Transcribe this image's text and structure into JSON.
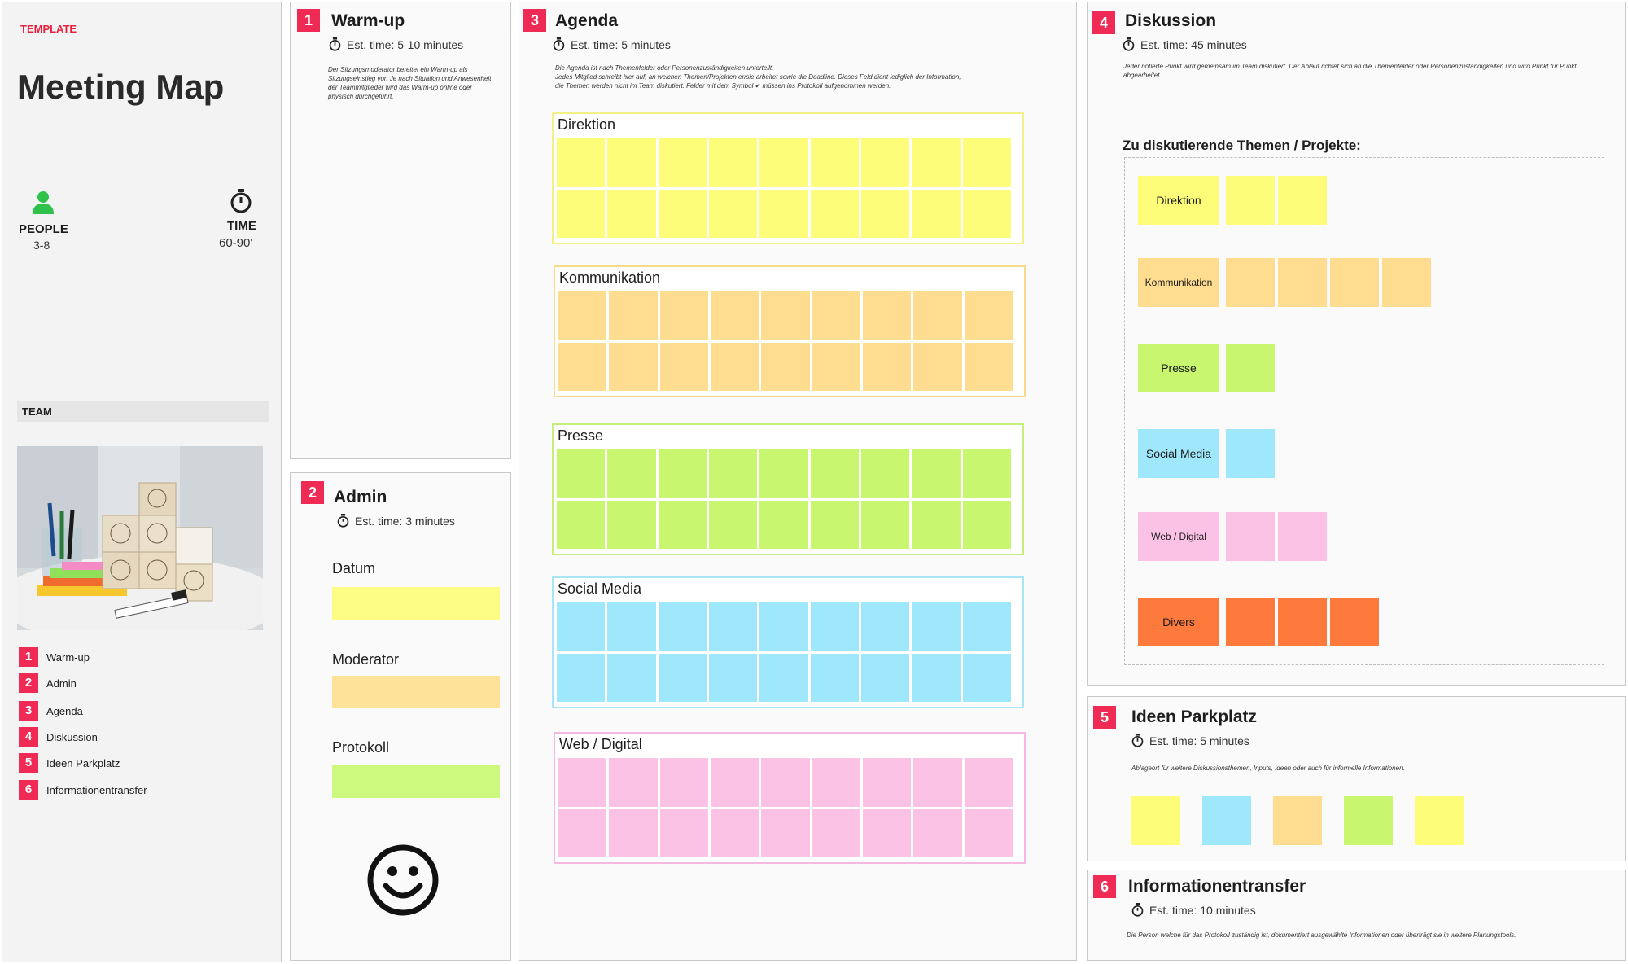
{
  "sidebar": {
    "template_label": "TEMPLATE",
    "title": "Meeting Map",
    "people_label": "PEOPLE",
    "people_value": "3-8",
    "time_label": "TIME",
    "time_value": "60-90'",
    "team_label": "TEAM",
    "steps": [
      {
        "num": "1",
        "label": "Warm-up"
      },
      {
        "num": "2",
        "label": "Admin"
      },
      {
        "num": "3",
        "label": "Agenda"
      },
      {
        "num": "4",
        "label": "Diskussion"
      },
      {
        "num": "5",
        "label": "Ideen Parkplatz"
      },
      {
        "num": "6",
        "label": "Informationentransfer"
      }
    ]
  },
  "warmup": {
    "num": "1",
    "title": "Warm-up",
    "time": "Est. time: 5-10 minutes",
    "desc": "Der Sitzungsmoderator bereitet ein Warm-up als Sitzungseinstieg vor. Je nach Situation und Anwesenheit der Teammitglieder wird das Warm-up online oder physisch durchgeführt."
  },
  "admin": {
    "num": "2",
    "title": "Admin",
    "time": "Est. time: 3 minutes",
    "fields": [
      {
        "label": "Datum",
        "color": "#fdfd86"
      },
      {
        "label": "Moderator",
        "color": "#fee29a"
      },
      {
        "label": "Protokoll",
        "color": "#cdfa7e"
      }
    ]
  },
  "agenda": {
    "num": "3",
    "title": "Agenda",
    "time": "Est. time: 5 minutes",
    "desc_line1": "Die Agenda ist nach Themenfelder oder Personenzuständigkeiten unterteilt.",
    "desc_line2": "Jedes Mitglied schreibt hier auf, an welchen Themen/Projekten er/sie arbeitet sowie die Deadline. Dieses Feld dient lediglich der Information,",
    "desc_line3": "die Themen werden nicht im Team diskutiert. Felder mit dem Symbol",
    "desc_line3b": "müssen ins Protokoll aufgenommen werden.",
    "groups": [
      {
        "label": "Direktion",
        "border": "#f3f08a",
        "note": "#fdfd7a"
      },
      {
        "label": "Kommunikation",
        "border": "#f9d98a",
        "note": "#fedc90"
      },
      {
        "label": "Presse",
        "border": "#c7ee7a",
        "note": "#c8f66e"
      },
      {
        "label": "Social Media",
        "border": "#a8e6f3",
        "note": "#9fe8fb"
      },
      {
        "label": "Web / Digital",
        "border": "#f6b8e2",
        "note": "#fcc2e6"
      }
    ]
  },
  "diskussion": {
    "num": "4",
    "title": "Diskussion",
    "time": "Est. time: 45 minutes",
    "desc": "Jeder notierte Punkt wird gemeinsam im Team diskutiert. Der Ablauf richtet sich an die Themenfelder oder Personenzuständigkeiten und wird Punkt für Punkt abgearbeitet.",
    "subtitle": "Zu diskutierende Themen / Projekte:",
    "rows": [
      {
        "label": "Direktion",
        "color": "#fdfd7a",
        "extra": 2
      },
      {
        "label": "Kommunikation",
        "color": "#fedc90",
        "extra": 4
      },
      {
        "label": "Presse",
        "color": "#c8f66e",
        "extra": 1
      },
      {
        "label": "Social Media",
        "color": "#9fe8fb",
        "extra": 1
      },
      {
        "label": "Web / Digital",
        "color": "#fcc2e6",
        "extra": 2
      },
      {
        "label": "Divers",
        "color": "#fe7a3c",
        "extra": 3
      }
    ]
  },
  "parkplatz": {
    "num": "5",
    "title": "Ideen Parkplatz",
    "time": "Est. time: 5 minutes",
    "desc": "Ablageort für weitere Diskussionsthemen, Inputs, Ideen oder auch für informelle Informationen.",
    "notes": [
      "#fdfd7a",
      "#9fe8fb",
      "#fedc90",
      "#c8f66e",
      "#fdfd7a"
    ]
  },
  "infotransfer": {
    "num": "6",
    "title": "Informationentransfer",
    "time": "Est. time: 10  minutes",
    "desc": "Die Person welche für das Protokoll zuständig ist, dokumentiert ausgewählte Informationen oder überträgt sie in weitere Planungstools."
  }
}
